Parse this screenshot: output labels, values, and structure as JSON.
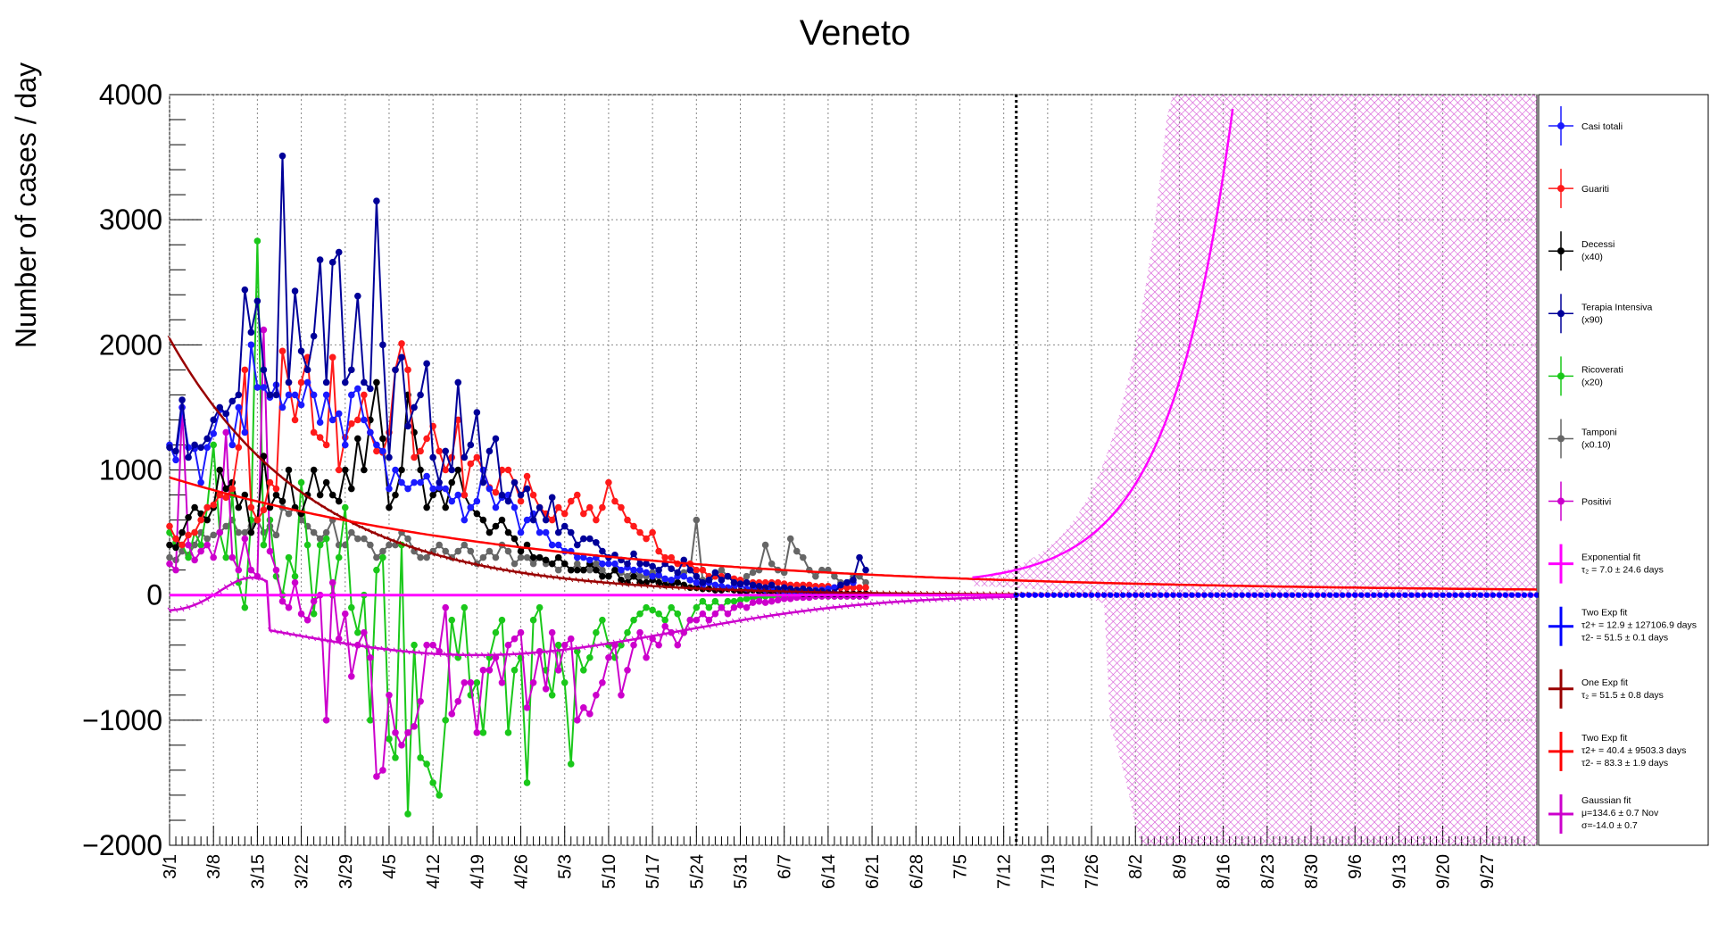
{
  "chart_data": {
    "type": "line",
    "title": "Veneto",
    "ylabel": "Number of cases / day",
    "xlabel": "",
    "ylim": [
      -2000,
      4000
    ],
    "yticks": [
      "−2000",
      "−1000",
      "0",
      "1000",
      "2000",
      "3000",
      "4000"
    ],
    "ytick_values": [
      -2000,
      -1000,
      0,
      1000,
      2000,
      3000,
      4000
    ],
    "x_start_date": "3/1",
    "x_range_days": [
      0,
      218
    ],
    "xticks": [
      "3/1",
      "3/8",
      "3/15",
      "3/22",
      "3/29",
      "4/5",
      "4/12",
      "4/19",
      "4/26",
      "5/3",
      "5/10",
      "5/17",
      "5/24",
      "5/31",
      "6/7",
      "6/14",
      "6/21",
      "6/28",
      "7/5",
      "7/12",
      "7/19",
      "7/26",
      "8/2",
      "8/9",
      "8/16",
      "8/23",
      "8/30",
      "9/6",
      "9/13",
      "9/20",
      "9/27"
    ],
    "vline_day": 135,
    "grid": true,
    "legend_position": "right",
    "colors": {
      "casi": "#1a1aff",
      "guariti": "#ff1a1a",
      "decessi": "#000000",
      "terapia": "#000099",
      "ricoverati": "#1ac81a",
      "tamponi": "#666666",
      "positivi": "#cc00cc",
      "expfit": "#ff00ff",
      "twoexp_blue": "#0000ff",
      "oneexp": "#990000",
      "twoexp_red": "#ff0000",
      "gauss": "#cc00cc",
      "band": "#e07be0"
    },
    "legend": [
      {
        "label": "Casi totali",
        "sub": ""
      },
      {
        "label": "Guariti",
        "sub": ""
      },
      {
        "label": "Decessi",
        "sub": "(x40)"
      },
      {
        "label": "Terapia Intensiva",
        "sub": "(x90)"
      },
      {
        "label": "Ricoverati",
        "sub": "(x20)"
      },
      {
        "label": "Tamponi",
        "sub": "(x0.10)"
      },
      {
        "label": "Positivi",
        "sub": ""
      },
      {
        "label": "Exponential fit",
        "sub": "τ₂ = 7.0   ± 24.6 days"
      },
      {
        "label": "Two Exp fit",
        "sub": "τ2+ = 12.9   ± 127106.9 days",
        "sub2": "τ2- = 51.5   ± 0.1 days"
      },
      {
        "label": "One Exp fit",
        "sub": "τ₂ = 51.5   ± 0.8 days"
      },
      {
        "label": "Two Exp fit",
        "sub": "τ2+ = 40.4   ± 9503.3 days",
        "sub2": "τ2- = 83.3   ± 1.9 days"
      },
      {
        "label": "Gaussian fit",
        "sub": "μ=134.6  ± 0.7 Nov",
        "sub2": "σ=-14.0  ± 0.7"
      }
    ],
    "series": [
      {
        "name": "Terapia Intensiva",
        "values": [
          1180,
          1150,
          1560,
          1100,
          1200,
          1180,
          1250,
          1400,
          1500,
          1450,
          1550,
          1600,
          2440,
          2100,
          2350,
          1800,
          1600,
          1600,
          3510,
          1700,
          2430,
          1950,
          1800,
          2070,
          2680,
          1700,
          2660,
          2740,
          1700,
          1800,
          2390,
          1700,
          1650,
          3150,
          2000,
          1100,
          1800,
          1900,
          1350,
          1500,
          1600,
          1850,
          1100,
          900,
          1150,
          1000,
          1700,
          1100,
          1200,
          1460,
          900,
          1150,
          1250,
          800,
          750,
          900,
          800,
          850,
          600,
          700,
          600,
          780,
          500,
          550,
          500,
          400,
          450,
          450,
          420,
          350,
          300,
          320,
          280,
          250,
          330,
          250,
          250,
          230,
          200,
          250,
          210,
          180,
          280,
          200,
          150,
          100,
          120,
          180,
          120,
          150,
          100,
          90,
          100,
          80,
          70,
          60,
          80,
          50,
          60,
          50,
          40,
          50,
          40,
          30,
          30,
          20,
          20,
          80,
          100,
          120,
          300,
          200
        ]
      },
      {
        "name": "Casi totali",
        "values": [
          1200,
          1080,
          1500,
          1180,
          1170,
          900,
          1180,
          1290,
          1480,
          1450,
          1200,
          1500,
          1300,
          2000,
          1660,
          1660,
          1580,
          1680,
          1500,
          1600,
          1600,
          1520,
          1700,
          1600,
          1380,
          1600,
          1400,
          1450,
          1200,
          1600,
          1650,
          1400,
          1300,
          1200,
          1150,
          850,
          1000,
          900,
          850,
          900,
          900,
          950,
          850,
          860,
          850,
          750,
          800,
          600,
          700,
          750,
          1000,
          850,
          700,
          780,
          800,
          700,
          500,
          600,
          650,
          500,
          500,
          400,
          400,
          350,
          350,
          300,
          300,
          280,
          300,
          250,
          250,
          250,
          200,
          220,
          200,
          200,
          180,
          150,
          160,
          130,
          120,
          150,
          150,
          120,
          100,
          80,
          100,
          80,
          70,
          60,
          70,
          80,
          50,
          60,
          50,
          40,
          50,
          40,
          30,
          30,
          20,
          20,
          30,
          40,
          40,
          50,
          60,
          80,
          100,
          100
        ]
      },
      {
        "name": "Guariti",
        "values": [
          550,
          450,
          400,
          480,
          500,
          600,
          700,
          720,
          800,
          780,
          850,
          1180,
          1800,
          700,
          600,
          680,
          900,
          850,
          1950,
          1700,
          1400,
          1700,
          1900,
          1300,
          1260,
          1200,
          1900,
          1000,
          1260,
          1370,
          1400,
          1600,
          1300,
          1150,
          1140,
          1300,
          1800,
          2010,
          1800,
          1100,
          1150,
          1250,
          1350,
          1150,
          1000,
          1100,
          1400,
          800,
          1050,
          1100,
          1000,
          860,
          820,
          1000,
          1000,
          900,
          750,
          950,
          800,
          700,
          650,
          600,
          700,
          650,
          750,
          800,
          650,
          700,
          600,
          700,
          900,
          750,
          700,
          600,
          550,
          500,
          450,
          500,
          350,
          300,
          300,
          250,
          250,
          250,
          200,
          200,
          150,
          150,
          150,
          150,
          130,
          120,
          100,
          100,
          100,
          100,
          100,
          100,
          90,
          80,
          80,
          80,
          80,
          70,
          70,
          70,
          60,
          60,
          60,
          60,
          60,
          60
        ]
      },
      {
        "name": "Decessi",
        "values": [
          400,
          380,
          500,
          620,
          700,
          650,
          600,
          700,
          1000,
          850,
          900,
          700,
          800,
          500,
          600,
          1110,
          700,
          800,
          750,
          1000,
          700,
          650,
          800,
          1000,
          800,
          900,
          800,
          750,
          1000,
          850,
          1250,
          1000,
          1400,
          1700,
          1250,
          700,
          800,
          1000,
          1600,
          1300,
          1000,
          700,
          800,
          850,
          700,
          900,
          1000,
          800,
          700,
          650,
          600,
          500,
          550,
          600,
          500,
          450,
          350,
          400,
          300,
          300,
          280,
          250,
          300,
          250,
          200,
          200,
          200,
          250,
          200,
          150,
          150,
          200,
          120,
          100,
          150,
          100,
          100,
          120,
          100,
          80,
          80,
          100,
          80,
          60,
          60,
          50,
          50,
          40,
          40,
          50,
          40,
          30,
          30,
          40,
          30,
          20,
          30,
          20,
          20,
          20,
          20,
          10,
          10,
          10,
          10,
          10,
          10,
          10,
          10,
          10,
          10,
          10
        ]
      },
      {
        "name": "Ricoverati",
        "values": [
          500,
          420,
          400,
          300,
          500,
          400,
          700,
          1200,
          500,
          300,
          800,
          100,
          -100,
          600,
          2830,
          400,
          600,
          150,
          0,
          300,
          150,
          900,
          400,
          -150,
          400,
          450,
          0,
          300,
          700,
          -100,
          -300,
          0,
          -1000,
          200,
          300,
          -1150,
          -1300,
          400,
          -1750,
          -400,
          -1300,
          -1350,
          -1500,
          -1600,
          -1000,
          -200,
          -500,
          -100,
          -800,
          -700,
          -1100,
          -500,
          -300,
          -200,
          -1100,
          -600,
          -500,
          -1500,
          -200,
          -100,
          -600,
          -800,
          -400,
          -700,
          -1350,
          -450,
          -600,
          -500,
          -300,
          -200,
          -400,
          -500,
          -400,
          -300,
          -200,
          -150,
          -100,
          -120,
          -150,
          -200,
          -100,
          -150,
          -300,
          -200,
          -100,
          -50,
          -100,
          -50,
          -100,
          -50,
          -50,
          -40,
          -30,
          -20,
          -20,
          -10,
          -10,
          -10,
          -10,
          -10,
          -10,
          -10,
          -10,
          -10,
          -10,
          -10,
          -10,
          -10,
          -10,
          -10,
          -10,
          0
        ]
      },
      {
        "name": "Tamponi",
        "values": [
          300,
          280,
          350,
          320,
          400,
          500,
          450,
          480,
          500,
          550,
          600,
          500,
          500,
          550,
          600,
          500,
          550,
          480,
          700,
          650,
          700,
          600,
          550,
          500,
          450,
          500,
          600,
          400,
          400,
          500,
          450,
          450,
          400,
          300,
          350,
          400,
          400,
          500,
          450,
          350,
          300,
          300,
          350,
          400,
          350,
          300,
          350,
          400,
          350,
          250,
          300,
          350,
          300,
          400,
          350,
          250,
          300,
          300,
          250,
          300,
          250,
          250,
          200,
          250,
          200,
          250,
          200,
          200,
          250,
          200,
          150,
          200,
          180,
          150,
          200,
          150,
          150,
          180,
          150,
          120,
          100,
          150,
          180,
          200,
          600,
          120,
          100,
          150,
          200,
          150,
          100,
          100,
          150,
          180,
          200,
          400,
          250,
          200,
          180,
          450,
          350,
          300,
          200,
          150,
          200,
          200,
          150,
          100,
          100,
          150,
          150,
          100
        ]
      },
      {
        "name": "Positivi",
        "values": [
          250,
          200,
          1500,
          400,
          280,
          350,
          400,
          300,
          500,
          1300,
          300,
          200,
          450,
          200,
          150,
          2120,
          350,
          200,
          -50,
          -100,
          100,
          -150,
          -200,
          -50,
          0,
          -1000,
          100,
          -350,
          -150,
          -650,
          -400,
          -300,
          -500,
          -1450,
          -1400,
          -800,
          -1100,
          -1200,
          -1100,
          -1050,
          -850,
          -400,
          -400,
          -450,
          -100,
          -950,
          -850,
          -700,
          -700,
          -1100,
          -600,
          -600,
          -500,
          -700,
          -400,
          -350,
          -300,
          -900,
          -700,
          -450,
          -750,
          -300,
          -600,
          -400,
          -350,
          -1000,
          -900,
          -950,
          -800,
          -700,
          -500,
          -400,
          -800,
          -600,
          -400,
          -300,
          -500,
          -350,
          -400,
          -250,
          -300,
          -400,
          -300,
          -200,
          -200,
          -150,
          -200,
          -150,
          -100,
          -150,
          -100,
          -80,
          -100,
          -60,
          -50,
          -60,
          -50,
          -40,
          -30,
          -30,
          -20,
          -20,
          -20,
          -10,
          -10,
          -10,
          -10,
          -10,
          -10,
          -10,
          -10,
          -10
        ]
      }
    ]
  }
}
